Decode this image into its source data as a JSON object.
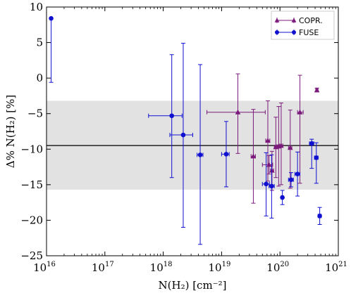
{
  "chart_data": {
    "type": "scatter",
    "xlabel": "N(H₂) [cm⁻²]",
    "ylabel": "Δ% N(H₂) [%]",
    "x_scale": "log",
    "xlim": [
      1e+16,
      1e+21
    ],
    "ylim": [
      -25,
      10
    ],
    "x_tick_values": [
      1e+16,
      1e+17,
      1e+18,
      1e+19,
      1e+20,
      1e+21
    ],
    "x_tick_labels": [
      [
        "10",
        "16"
      ],
      [
        "10",
        "17"
      ],
      [
        "10",
        "18"
      ],
      [
        "10",
        "19"
      ],
      [
        "10",
        "20"
      ],
      [
        "10",
        "21"
      ]
    ],
    "y_tick_values": [
      10,
      5,
      0,
      -5,
      -10,
      -15,
      -20,
      -25
    ],
    "y_tick_labels": [
      "10",
      "5",
      "0",
      "−5",
      "−10",
      "−15",
      "−20",
      "−25"
    ],
    "mean_line": -9.5,
    "band": [
      -15.7,
      -3.2
    ],
    "grid": false,
    "legend_position": "top-right",
    "colors": {
      "copr": "#7b1a7b",
      "fuse": "#1010d0",
      "band": "#e2e2e2",
      "mean": "#333333"
    },
    "series": [
      {
        "name": "COPR.",
        "marker": "triangle",
        "points": [
          {
            "x": 1.9e+19,
            "y": -4.8,
            "ylo": -10.6,
            "yhi": 0.6,
            "xlo": 5.6e+18,
            "xhi": 5.6e+19
          },
          {
            "x": 3.5e+19,
            "y": -11.0,
            "ylo": -17.6,
            "yhi": -4.4,
            "xlo": 3.2e+19,
            "xhi": 3.8e+19
          },
          {
            "x": 6.2e+19,
            "y": -8.8,
            "ylo": -14.5,
            "yhi": -3.2,
            "xlo": 5.7e+19,
            "xhi": 6.7e+19
          },
          {
            "x": 6.5e+19,
            "y": -12.2,
            "ylo": -13.5,
            "yhi": -10.9,
            "xlo": 5e+19,
            "xhi": 7.5e+19
          },
          {
            "x": 7.3e+19,
            "y": -13.0,
            "ylo": -15.8,
            "yhi": -10.3,
            "xlo": 6.9e+19,
            "xhi": 7.8e+19
          },
          {
            "x": 8.5e+19,
            "y": -9.7,
            "ylo": -14.0,
            "yhi": -5.5,
            "xlo": 8e+19,
            "xhi": 9e+19
          },
          {
            "x": 9.5e+19,
            "y": -9.6,
            "ylo": -15.2,
            "yhi": -4.0,
            "xlo": 8.9e+19,
            "xhi": 1e+20
          },
          {
            "x": 1.05e+20,
            "y": -9.5,
            "ylo": -15.0,
            "yhi": -3.5,
            "xlo": 9.9e+19,
            "xhi": 1.12e+20
          },
          {
            "x": 1.5e+20,
            "y": -9.8,
            "ylo": -15.5,
            "yhi": -4.5,
            "xlo": 1.4e+20,
            "xhi": 1.6e+20
          },
          {
            "x": 2.2e+20,
            "y": -4.8,
            "ylo": -14.8,
            "yhi": 0.4,
            "xlo": 2e+20,
            "xhi": 2.5e+20
          },
          {
            "x": 4.3e+20,
            "y": -1.7,
            "ylo": -1.9,
            "yhi": -1.4,
            "xlo": 4.1e+20,
            "xhi": 4.5e+20
          }
        ]
      },
      {
        "name": "FUSE",
        "marker": "circle",
        "points": [
          {
            "x": 1.2e+16,
            "y": 8.4,
            "ylo": -0.6,
            "yhi": 8.4
          },
          {
            "x": 1.4e+18,
            "y": -5.3,
            "ylo": -14.0,
            "yhi": 3.3,
            "xlo": 5.6e+17,
            "xhi": 2.1e+18
          },
          {
            "x": 2.2e+18,
            "y": -8.0,
            "ylo": -21.0,
            "yhi": 4.9,
            "xlo": 1.3e+18,
            "xhi": 3.2e+18
          },
          {
            "x": 4.3e+18,
            "y": -10.8,
            "ylo": -23.4,
            "yhi": 1.9,
            "xlo": 3.8e+18,
            "xhi": 4.8e+18
          },
          {
            "x": 1.2e+19,
            "y": -10.7,
            "ylo": -15.3,
            "yhi": -6.1,
            "xlo": 1e+19,
            "xhi": 1.35e+19
          },
          {
            "x": 5.8e+19,
            "y": -14.9,
            "ylo": -19.4,
            "yhi": -10.5,
            "xlo": 5e+19,
            "xhi": 6.6e+19
          },
          {
            "x": 7.2e+19,
            "y": -15.2,
            "ylo": -19.7,
            "yhi": -10.8,
            "xlo": 6.5e+19,
            "xhi": 8e+19
          },
          {
            "x": 1.1e+20,
            "y": -16.8,
            "ylo": -17.8,
            "yhi": -15.8,
            "xlo": 1.05e+20,
            "xhi": 1.15e+20
          },
          {
            "x": 1.55e+20,
            "y": -14.3,
            "ylo": -15.3,
            "yhi": -13.3,
            "xlo": 1.4e+20,
            "xhi": 1.7e+20
          },
          {
            "x": 2e+20,
            "y": -13.5,
            "ylo": -16.6,
            "yhi": -10.4,
            "xlo": 1.8e+20,
            "xhi": 2.2e+20
          },
          {
            "x": 3.5e+20,
            "y": -9.2,
            "ylo": -12.7,
            "yhi": -8.6,
            "xlo": 3.2e+20,
            "xhi": 3.8e+20
          },
          {
            "x": 4.2e+20,
            "y": -11.2,
            "ylo": -14.8,
            "yhi": -9.1,
            "xlo": 3.9e+20,
            "xhi": 4.5e+20
          },
          {
            "x": 4.8e+20,
            "y": -19.4,
            "ylo": -20.6,
            "yhi": -18.2,
            "xlo": 4.5e+20,
            "xhi": 5.1e+20
          }
        ]
      }
    ]
  }
}
